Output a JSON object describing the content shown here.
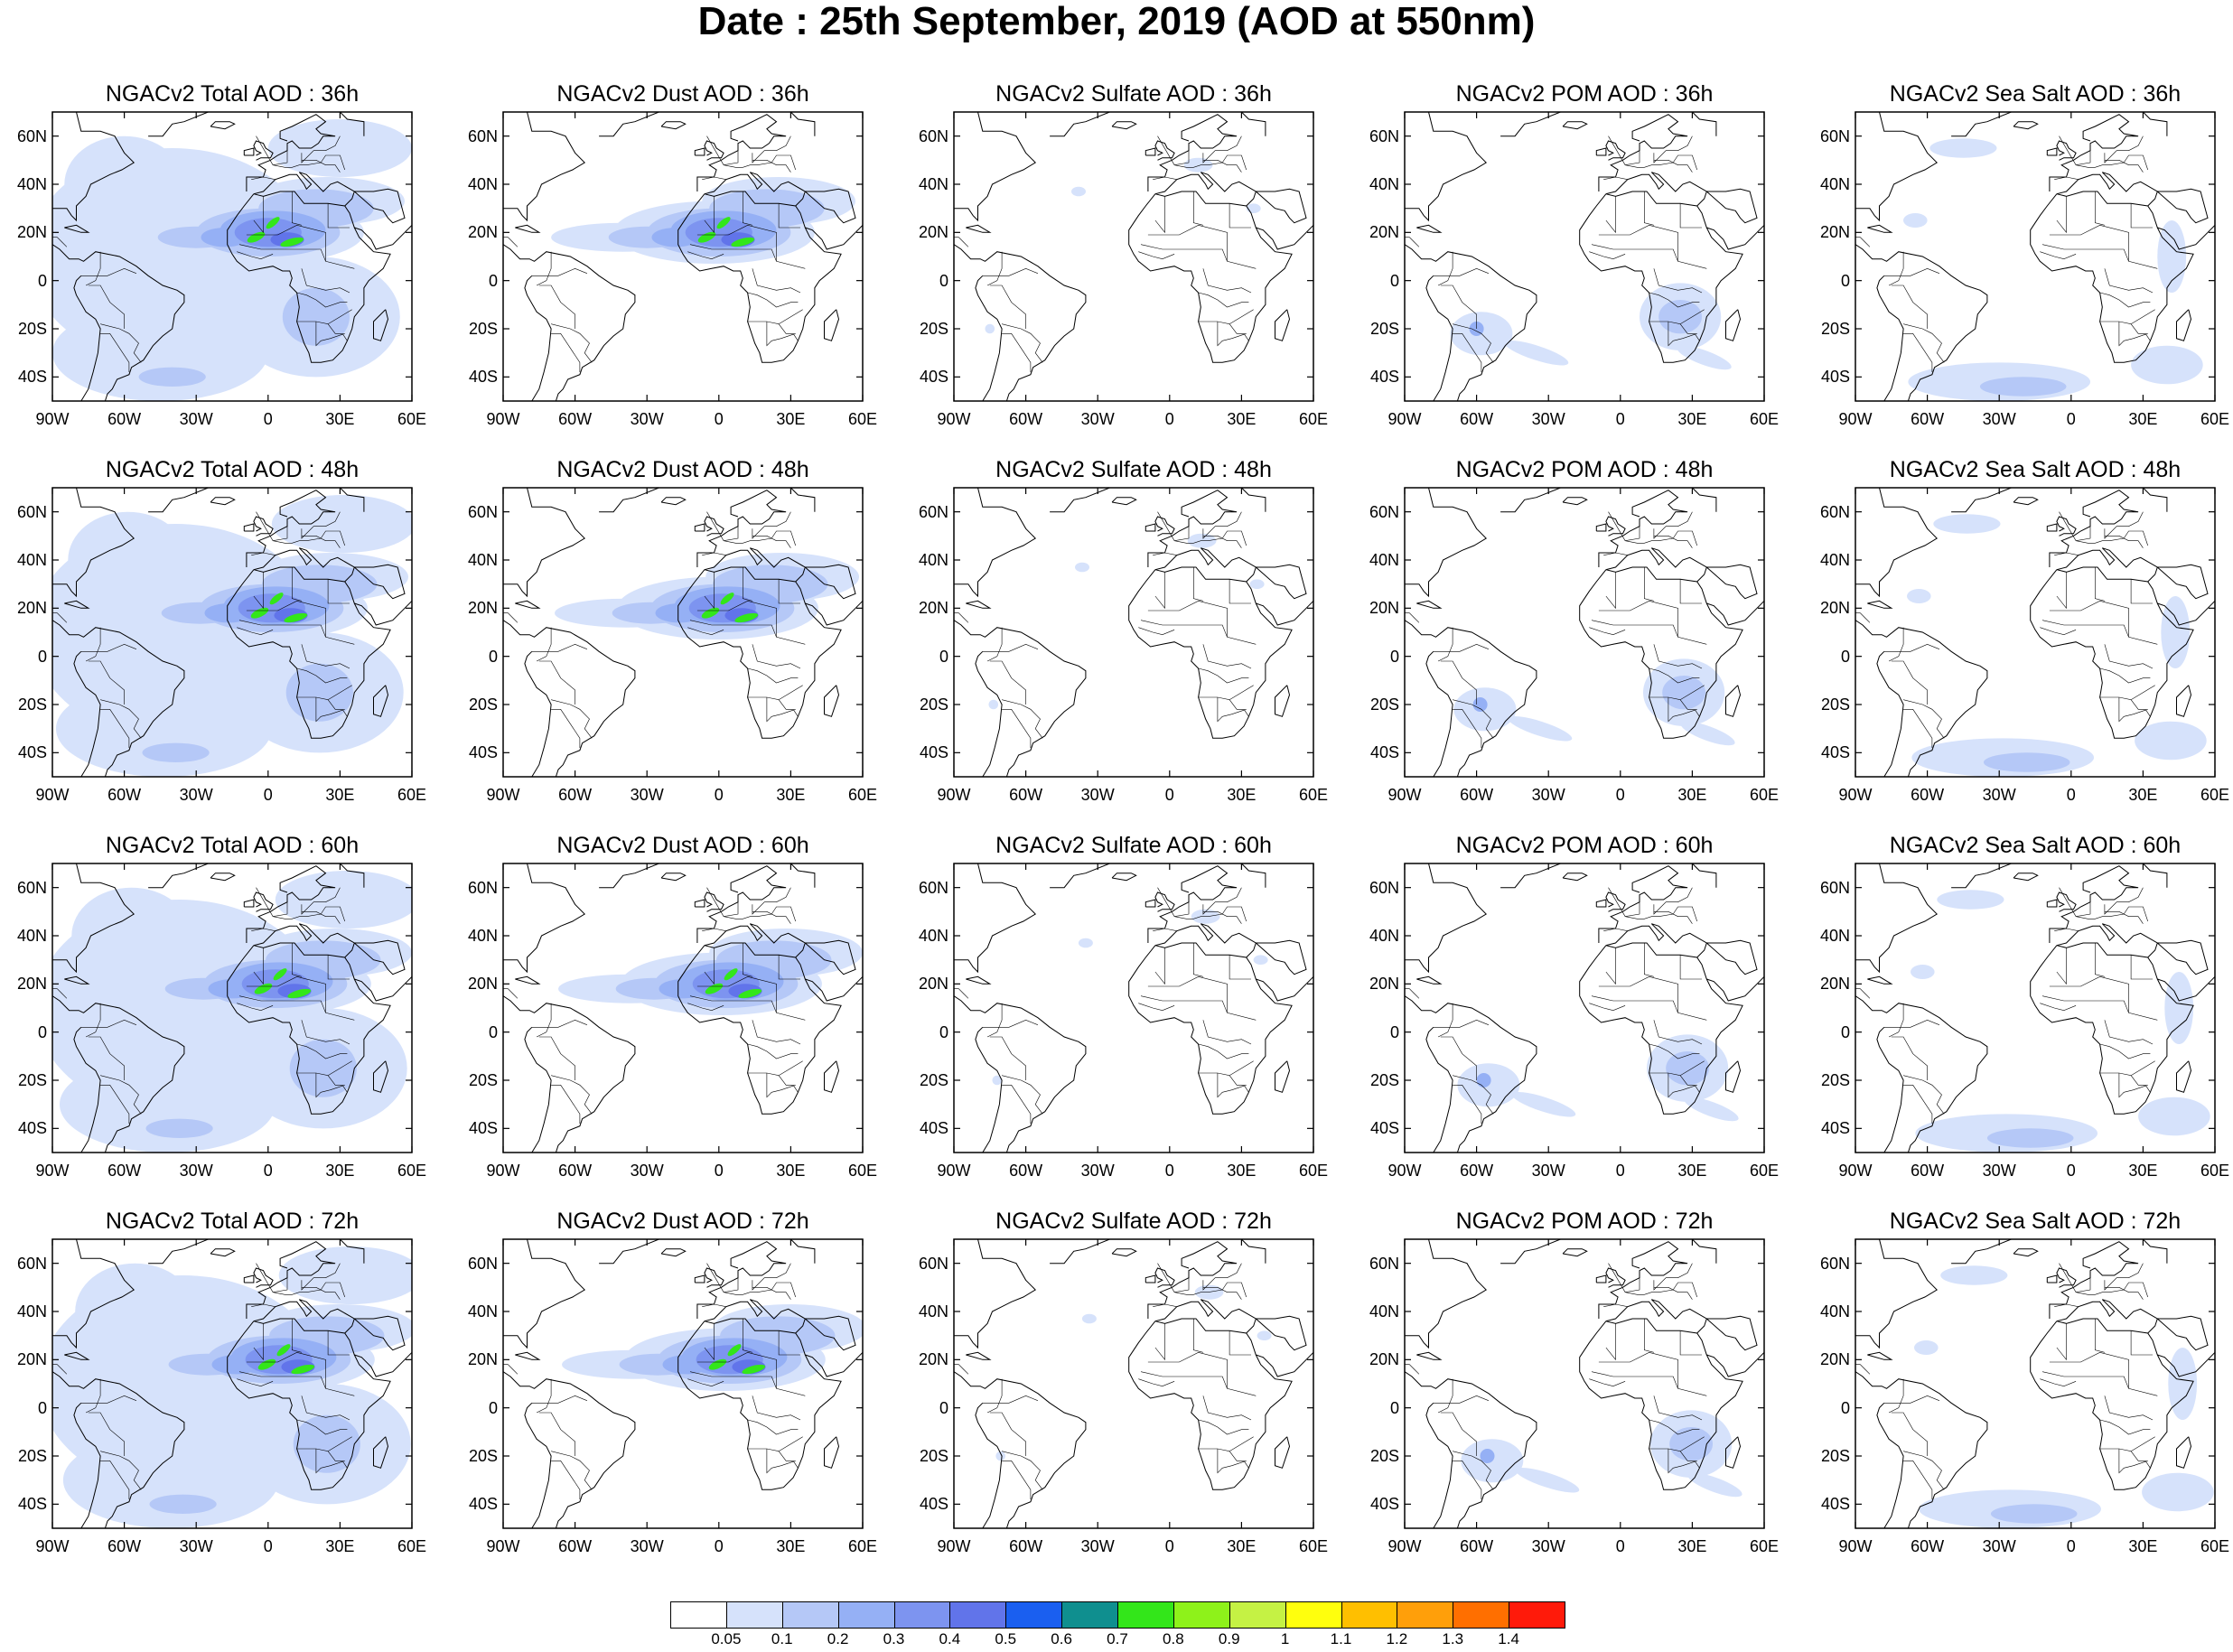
{
  "title": "Date : 25th September, 2019 (AOD at 550nm)",
  "lat_labels": [
    "60N",
    "40N",
    "20N",
    "0",
    "20S",
    "40S"
  ],
  "lon_labels": [
    "90W",
    "60W",
    "30W",
    "0",
    "30E",
    "60E"
  ],
  "lat_values": [
    60,
    40,
    20,
    0,
    -20,
    -40
  ],
  "lon_values": [
    -90,
    -60,
    -30,
    0,
    30,
    60
  ],
  "map_extent": {
    "lon_min": -90,
    "lon_max": 60,
    "lat_min": -50,
    "lat_max": 70
  },
  "panels": [
    {
      "title": "NGACv2 Total AOD : 36h",
      "species": "total",
      "hour": 36
    },
    {
      "title": "NGACv2 Dust AOD : 36h",
      "species": "dust",
      "hour": 36
    },
    {
      "title": "NGACv2 Sulfate AOD : 36h",
      "species": "sulfate",
      "hour": 36
    },
    {
      "title": "NGACv2 POM AOD : 36h",
      "species": "pom",
      "hour": 36
    },
    {
      "title": "NGACv2 Sea Salt AOD : 36h",
      "species": "seasalt",
      "hour": 36
    },
    {
      "title": "NGACv2 Total AOD : 48h",
      "species": "total",
      "hour": 48
    },
    {
      "title": "NGACv2 Dust AOD : 48h",
      "species": "dust",
      "hour": 48
    },
    {
      "title": "NGACv2 Sulfate AOD : 48h",
      "species": "sulfate",
      "hour": 48
    },
    {
      "title": "NGACv2 POM AOD : 48h",
      "species": "pom",
      "hour": 48
    },
    {
      "title": "NGACv2 Sea Salt AOD : 48h",
      "species": "seasalt",
      "hour": 48
    },
    {
      "title": "NGACv2 Total AOD : 60h",
      "species": "total",
      "hour": 60
    },
    {
      "title": "NGACv2 Dust AOD : 60h",
      "species": "dust",
      "hour": 60
    },
    {
      "title": "NGACv2 Sulfate AOD : 60h",
      "species": "sulfate",
      "hour": 60
    },
    {
      "title": "NGACv2 POM AOD : 60h",
      "species": "pom",
      "hour": 60
    },
    {
      "title": "NGACv2 Sea Salt AOD : 60h",
      "species": "seasalt",
      "hour": 60
    },
    {
      "title": "NGACv2 Total AOD : 72h",
      "species": "total",
      "hour": 72
    },
    {
      "title": "NGACv2 Dust AOD : 72h",
      "species": "dust",
      "hour": 72
    },
    {
      "title": "NGACv2 Sulfate AOD : 72h",
      "species": "sulfate",
      "hour": 72
    },
    {
      "title": "NGACv2 POM AOD : 72h",
      "species": "pom",
      "hour": 72
    },
    {
      "title": "NGACv2 Sea Salt  AOD : 72h",
      "species": "seasalt",
      "hour": 72
    }
  ],
  "colorbar": {
    "levels": [
      "0.05",
      "0.1",
      "0.2",
      "0.3",
      "0.4",
      "0.5",
      "0.6",
      "0.7",
      "0.8",
      "0.9",
      "1",
      "1.1",
      "1.2",
      "1.3",
      "1.4"
    ],
    "colors": [
      "#ffffff",
      "#d6e2fb",
      "#b5c8f7",
      "#95b0f5",
      "#7d94f0",
      "#6174ea",
      "#1a5ff0",
      "#0f8f8f",
      "#33e61a",
      "#8ef21a",
      "#c5f244",
      "#ffff0d",
      "#ffbf00",
      "#ff9f0a",
      "#ff6f00",
      "#ff1a0a"
    ]
  },
  "colors": {
    "land_outline": "#000000",
    "background": "#ffffff"
  }
}
